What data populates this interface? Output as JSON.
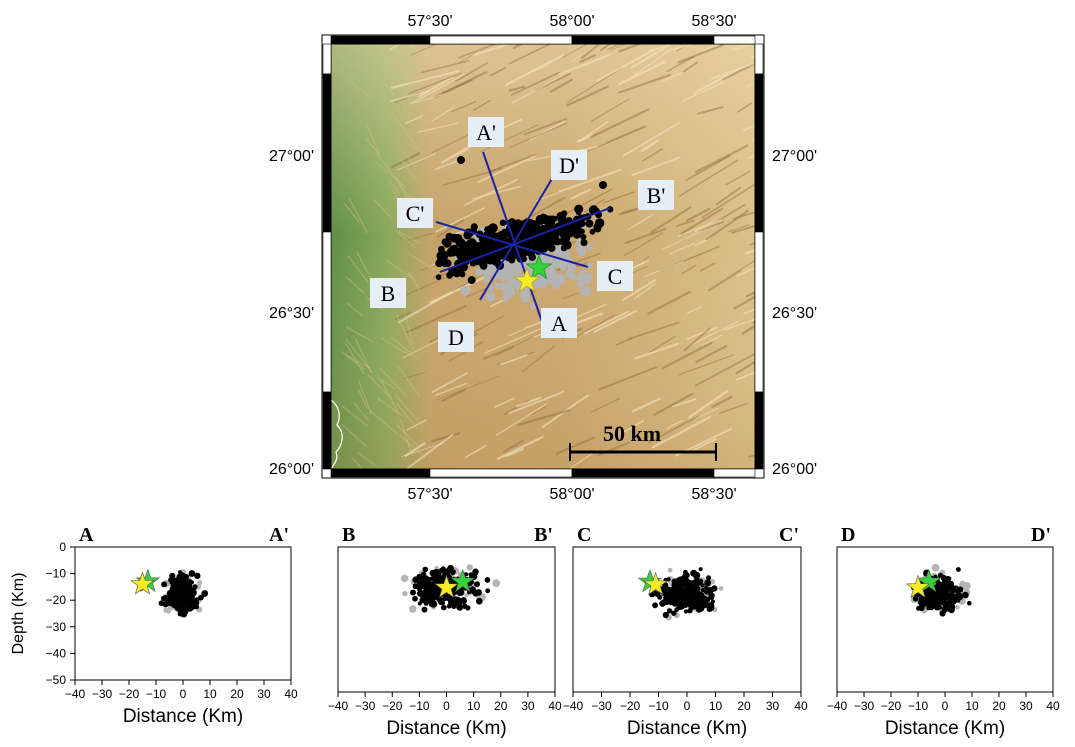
{
  "map": {
    "top_ticks": [
      "57°30'",
      "58°00'",
      "58°30'"
    ],
    "bottom_ticks": [
      "57°30'",
      "58°00'",
      "58°30'"
    ],
    "left_ticks": [
      "27°00'",
      "26°30'",
      "26°00'"
    ],
    "right_ticks": [
      "27°00'",
      "26°30'",
      "26°00'"
    ],
    "profile_labels": [
      "A'",
      "D'",
      "B'",
      "C'",
      "B",
      "C",
      "A",
      "D"
    ],
    "scale_label": "50 km",
    "colors": {
      "events_black": "#000000",
      "events_grey": "#b4b4b4",
      "profile_lines": "#1a22a8",
      "star_yellow": "#f5ec27",
      "star_green": "#37d23b",
      "label_box": "#e6eef8",
      "terrain_low": "#6f9a4a",
      "terrain_mid": "#c8a46a",
      "terrain_high": "#e8cf9a"
    }
  },
  "chart_data": [
    {
      "type": "scatter",
      "title_left": "A",
      "title_right": "A'",
      "xlabel": "Distance (Km)",
      "ylabel": "Depth (Km)",
      "xlim": [
        -40,
        40
      ],
      "ylim": [
        -50,
        0
      ],
      "xticks": [
        -40,
        -30,
        -20,
        -10,
        0,
        10,
        20,
        30,
        40
      ],
      "yticks": [
        0,
        -10,
        -20,
        -30,
        -40,
        -50
      ],
      "stars": [
        {
          "color": "green",
          "x": -13,
          "y": -13
        },
        {
          "color": "yellow",
          "x": -15,
          "y": -14
        }
      ]
    },
    {
      "type": "scatter",
      "title_left": "B",
      "title_right": "B'",
      "xlabel": "Distance (Km)",
      "ylabel": "",
      "xlim": [
        -40,
        40
      ],
      "ylim": [
        -50,
        0
      ],
      "xticks": [
        -40,
        -30,
        -20,
        -10,
        0,
        10,
        20,
        30,
        40
      ],
      "stars": [
        {
          "color": "green",
          "x": 6,
          "y": -12
        },
        {
          "color": "yellow",
          "x": 0,
          "y": -14
        }
      ]
    },
    {
      "type": "scatter",
      "title_left": "C",
      "title_right": "C'",
      "xlabel": "Distance (Km)",
      "ylabel": "",
      "xlim": [
        -40,
        40
      ],
      "ylim": [
        -50,
        0
      ],
      "xticks": [
        -40,
        -30,
        -20,
        -10,
        0,
        10,
        20,
        30,
        40
      ],
      "stars": [
        {
          "color": "green",
          "x": -13,
          "y": -12
        },
        {
          "color": "yellow",
          "x": -11,
          "y": -13
        }
      ]
    },
    {
      "type": "scatter",
      "title_left": "D",
      "title_right": "D'",
      "xlabel": "Distance (Km)",
      "ylabel": "",
      "xlim": [
        -40,
        40
      ],
      "ylim": [
        -50,
        0
      ],
      "xticks": [
        -40,
        -30,
        -20,
        -10,
        0,
        10,
        20,
        30,
        40
      ],
      "stars": [
        {
          "color": "green",
          "x": -6,
          "y": -12
        },
        {
          "color": "yellow",
          "x": -10,
          "y": -14
        }
      ]
    }
  ]
}
